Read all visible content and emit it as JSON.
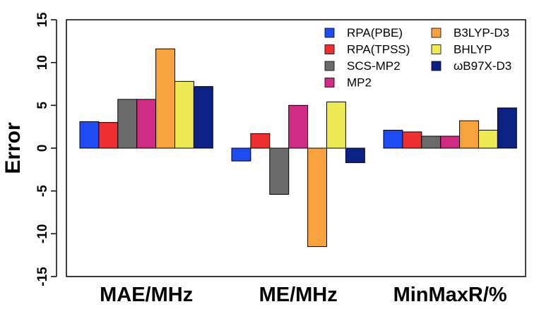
{
  "chart_data": {
    "type": "bar",
    "categories": [
      "MAE/MHz",
      "ME/MHz",
      "MinMaxR/%"
    ],
    "ylabel": "Error",
    "xlabel": "",
    "ylim": [
      -15,
      15
    ],
    "yticks": [
      -15,
      -10,
      -5,
      0,
      5,
      10,
      15
    ],
    "grid": false,
    "legend_position": "top-right",
    "series": [
      {
        "name": "RPA(PBE)",
        "color": "#1f4cf2",
        "values": [
          3.1,
          -1.5,
          2.1
        ]
      },
      {
        "name": "RPA(TPSS)",
        "color": "#ef2f2f",
        "values": [
          3.0,
          1.7,
          1.9
        ]
      },
      {
        "name": "SCS-MP2",
        "color": "#6b6b6b",
        "values": [
          5.7,
          -5.4,
          1.4
        ]
      },
      {
        "name": "MP2",
        "color": "#d02c85",
        "values": [
          5.7,
          5.0,
          1.4
        ]
      },
      {
        "name": "B3LYP-D3",
        "color": "#f7a23f",
        "values": [
          11.6,
          -11.5,
          3.2
        ]
      },
      {
        "name": "BHLYP",
        "color": "#eeea56",
        "values": [
          7.8,
          5.4,
          2.1
        ]
      },
      {
        "name": "ωB97X-D3",
        "color": "#0c2185",
        "values": [
          7.2,
          -1.7,
          4.7
        ]
      }
    ]
  }
}
